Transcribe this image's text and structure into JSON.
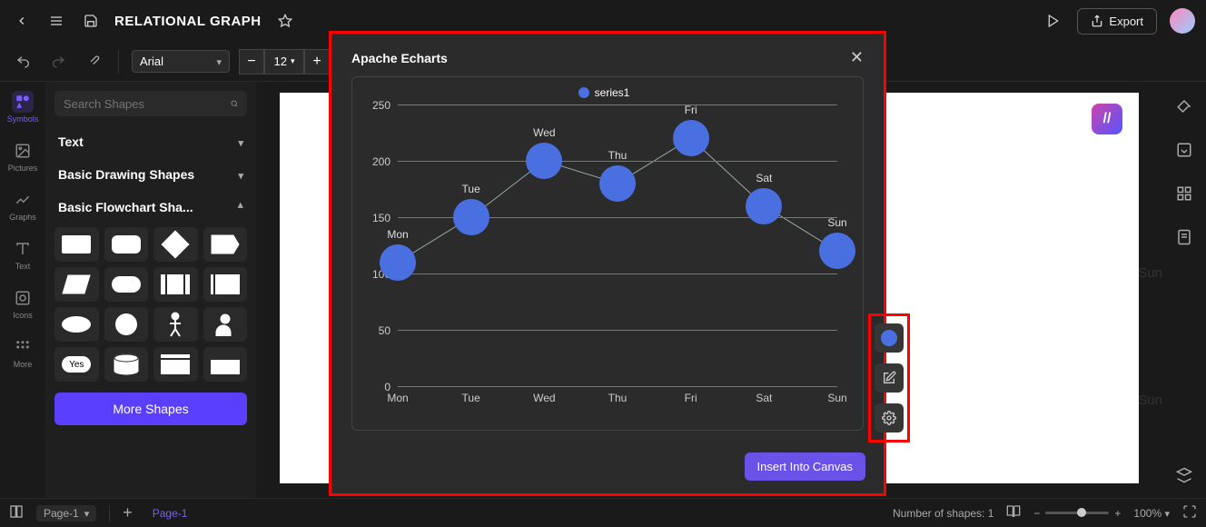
{
  "header": {
    "title": "RELATIONAL GRAPH",
    "export_label": "Export"
  },
  "toolbar": {
    "font_family": "Arial",
    "font_size": "12"
  },
  "leftRail": {
    "items": [
      {
        "label": "Symbols",
        "icon": "symbols",
        "active": true
      },
      {
        "label": "Pictures",
        "icon": "pictures",
        "active": false
      },
      {
        "label": "Graphs",
        "icon": "graphs",
        "active": false
      },
      {
        "label": "Text",
        "icon": "text",
        "active": false
      },
      {
        "label": "Icons",
        "icon": "icons",
        "active": false
      },
      {
        "label": "More",
        "icon": "more",
        "active": false
      }
    ]
  },
  "shapesPanel": {
    "search_placeholder": "Search Shapes",
    "categories": {
      "text": {
        "label": "Text",
        "expanded": false
      },
      "basic_draw": {
        "label": "Basic Drawing Shapes",
        "expanded": false
      },
      "basic_flow": {
        "label": "Basic Flowchart Sha...",
        "expanded": true
      }
    },
    "more_shapes_label": "More Shapes",
    "yes_label": "Yes"
  },
  "canvas": {
    "background_labels": [
      "Sun",
      "Sun"
    ]
  },
  "modal": {
    "title": "Apache Echarts",
    "insert_label": "Insert Into Canvas",
    "chart": {
      "type": "scatter-line",
      "legend_label": "series1",
      "series_color": "#4a6fe0",
      "line_color": "#9aa",
      "grid_color": "#777777",
      "text_color": "#cccccc",
      "background_color": "#2b2b2b",
      "bubble_radius": 20,
      "ylim": [
        0,
        250
      ],
      "ytick_step": 50,
      "yticks": [
        0,
        50,
        100,
        150,
        200,
        250
      ],
      "categories": [
        "Mon",
        "Tue",
        "Wed",
        "Thu",
        "Fri",
        "Sat",
        "Sun"
      ],
      "values": [
        110,
        150,
        200,
        180,
        220,
        160,
        120
      ],
      "point_labels": [
        "Mon",
        "Tue",
        "Wed",
        "Thu",
        "Fri",
        "Sat",
        "Sun"
      ]
    }
  },
  "bottombar": {
    "page_dropdown": "Page-1",
    "page_tab": "Page-1",
    "shapes_count_label": "Number of shapes: 1",
    "zoom_label": "100%"
  }
}
